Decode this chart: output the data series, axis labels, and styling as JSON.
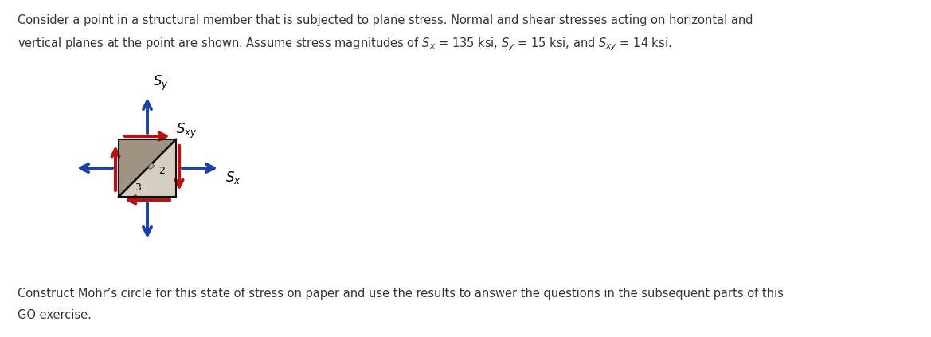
{
  "title_line1": "Consider a point in a structural member that is subjected to plane stress. Normal and shear stresses acting on horizontal and",
  "title_line2": "vertical planes at the point are shown. Assume stress magnitudes of $S_x$ = 135 ksi, $S_y$ = 15 ksi, and $S_{xy}$ = 14 ksi.",
  "bottom_line1": "Construct Mohr’s circle for this state of stress on paper and use the results to answer the questions in the subsequent parts of this",
  "bottom_line2": "GO exercise.",
  "box_color_top": "#9e9481",
  "box_color_bottom": "#d4cfc0",
  "box_edge_color": "#111111",
  "arrow_blue": "#1a3fa8",
  "arrow_red": "#bb1111",
  "text_color": "#333333",
  "fig_bg": "#ffffff",
  "label_Sx": "$S_x$",
  "label_Sy": "$S_y$",
  "label_Sxy": "$S_{xy}$",
  "label_2": "2",
  "label_3": "3"
}
